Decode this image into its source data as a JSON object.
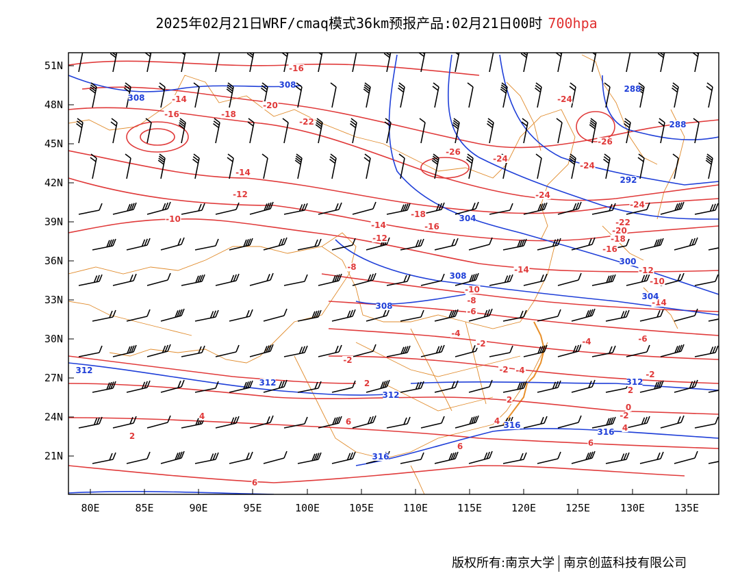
{
  "title": {
    "main": "2025年02月21日WRF/cmaq模式36km预报产品:02月21日00时",
    "level": "700hpa"
  },
  "axes": {
    "lat_labels": [
      "51N",
      "48N",
      "45N",
      "42N",
      "39N",
      "36N",
      "33N",
      "30N",
      "27N",
      "24N",
      "21N"
    ],
    "lon_labels": [
      "80E",
      "85E",
      "90E",
      "95E",
      "100E",
      "105E",
      "110E",
      "115E",
      "120E",
      "125E",
      "130E",
      "135E"
    ]
  },
  "map_data": {
    "extent": {
      "lon": [
        78,
        138
      ],
      "lat": [
        18,
        52
      ]
    },
    "temperature_labels": [
      "-16",
      "-14",
      "-16",
      "-18",
      "-20",
      "-22",
      "-14",
      "-12",
      "-10",
      "-26",
      "-24",
      "-24",
      "-26",
      "-24",
      "-24",
      "-24",
      "-18",
      "-16",
      "-14",
      "-12",
      "-22",
      "-20",
      "-18",
      "-16",
      "-8",
      "-10",
      "-8",
      "-6",
      "-14",
      "-12",
      "-10",
      "-14",
      "-4",
      "-2",
      "-4",
      "-6",
      "-2",
      "-2",
      "2",
      "2",
      "-4",
      "-2",
      "2",
      "0",
      "-2",
      "4",
      "6",
      "4",
      "4",
      "2",
      "6",
      "6",
      "6"
    ],
    "geopotential_labels": [
      "308",
      "308",
      "288",
      "288",
      "292",
      "304",
      "300",
      "308",
      "304",
      "308",
      "312",
      "312",
      "312",
      "312",
      "316",
      "316",
      "316"
    ],
    "colors": {
      "temperature": "#e03a3a",
      "geopotential": "#1f3fd8",
      "boundary": "#e08a2a",
      "wind": "#000000"
    }
  },
  "footer": {
    "left": "版权所有:南京大学",
    "right": "南京创蓝科技有限公司"
  }
}
